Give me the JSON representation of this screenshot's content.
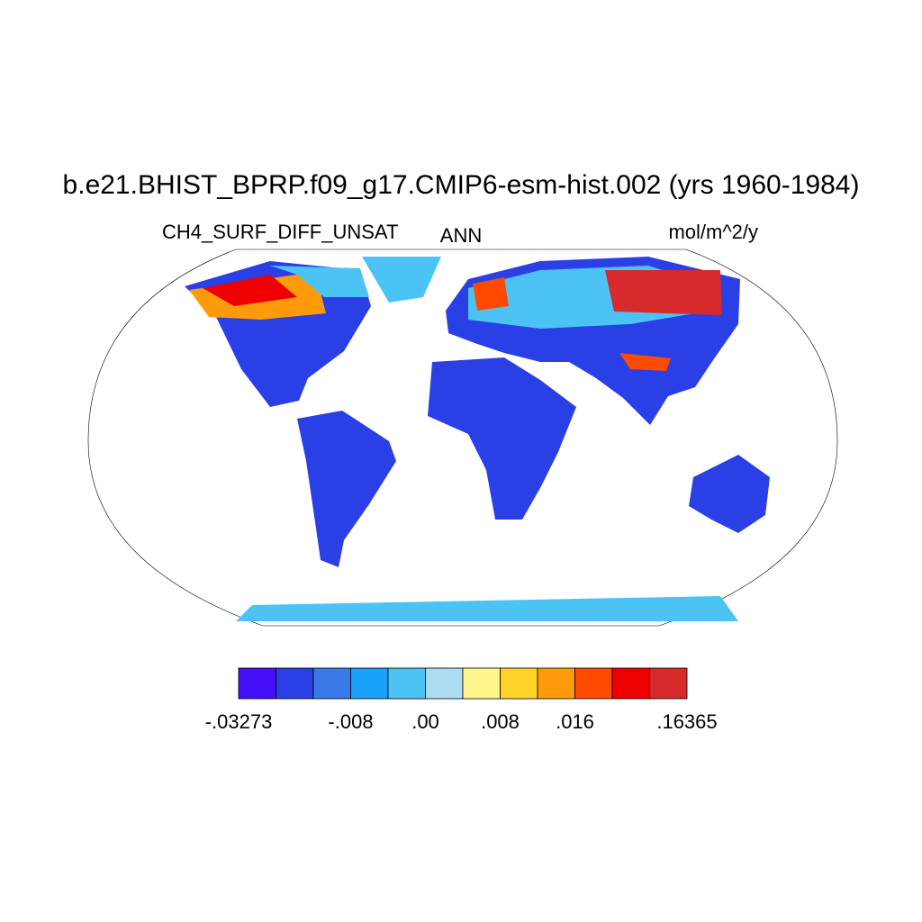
{
  "map": {
    "title": "b.e21.BHIST_BPRP.f09_g17.CMIP6-esm-hist.002 (yrs 1960-1984)",
    "left_subtitle": "CH4_SURF_DIFF_UNSAT",
    "center_subtitle": "ANN",
    "right_subtitle": "mol/m^2/y",
    "colorbar": {
      "colors": [
        "#4410fa",
        "#2a3fe6",
        "#3a7ae8",
        "#1aa1fc",
        "#4bc3f5",
        "#acdcf0",
        "#fff68c",
        "#ffd22a",
        "#ff9a0a",
        "#ff4b00",
        "#ee0000",
        "#d72a2a"
      ],
      "labels": [
        "-.03273",
        null,
        null,
        "-.008",
        null,
        ".00",
        null,
        ".008",
        null,
        ".016",
        null,
        null,
        ".16365"
      ]
    }
  }
}
